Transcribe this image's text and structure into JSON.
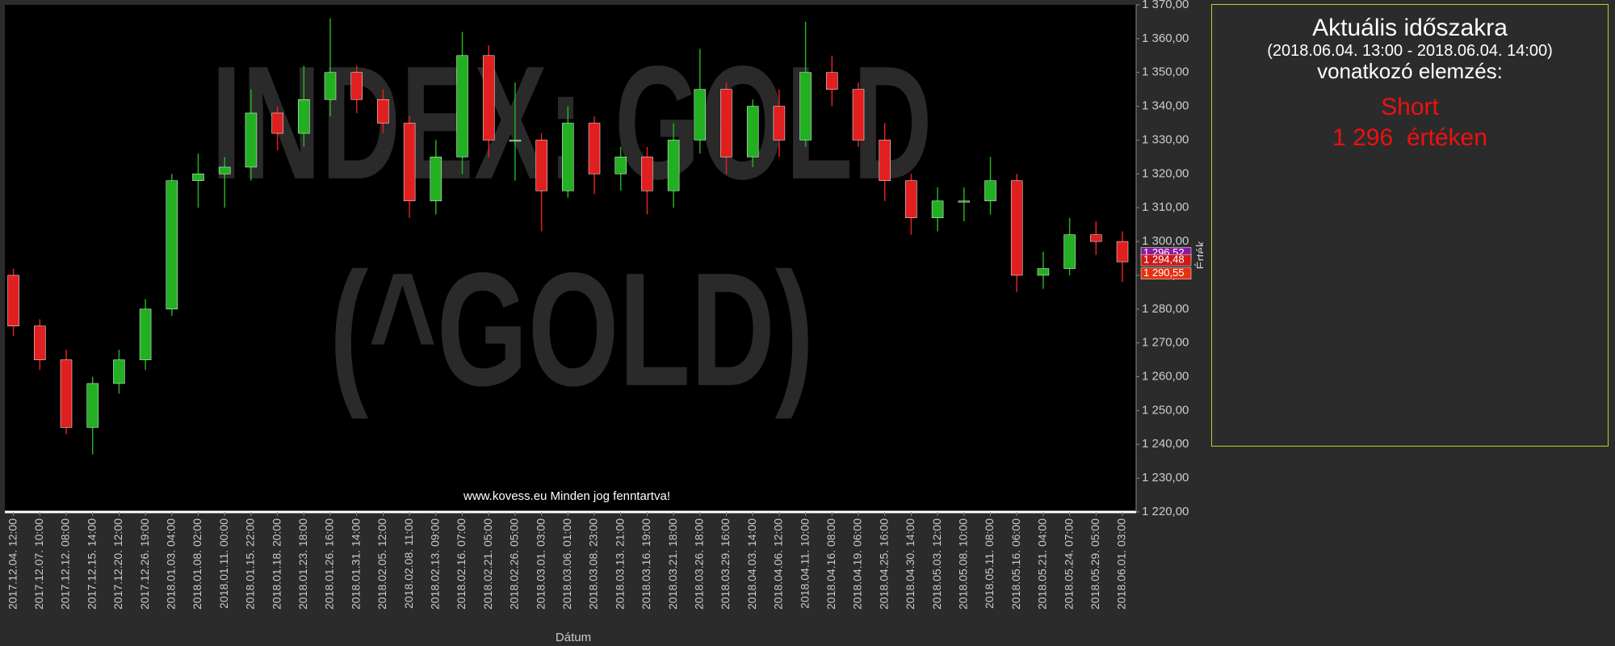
{
  "chart_data": {
    "type": "candlestick",
    "watermark": [
      "INDEX: GOLD",
      "(^GOLD)"
    ],
    "footer": "www.kovess.eu Minden jog fenntartva!",
    "x_label": "Dátum",
    "y_label": "Érték",
    "categories": [
      "2017.12.04. 12:00",
      "2017.12.07. 10:00",
      "2017.12.12. 08:00",
      "2017.12.15. 14:00",
      "2017.12.20. 12:00",
      "2017.12.26. 19:00",
      "2018.01.03. 04:00",
      "2018.01.08. 02:00",
      "2018.01.11. 00:00",
      "2018.01.15. 22:00",
      "2018.01.18. 20:00",
      "2018.01.23. 18:00",
      "2018.01.26. 16:00",
      "2018.01.31. 14:00",
      "2018.02.05. 12:00",
      "2018.02.08. 11:00",
      "2018.02.13. 09:00",
      "2018.02.16. 07:00",
      "2018.02.21. 05:00",
      "2018.02.26. 05:00",
      "2018.03.01. 03:00",
      "2018.03.06. 01:00",
      "2018.03.08. 23:00",
      "2018.03.13. 21:00",
      "2018.03.16. 19:00",
      "2018.03.21. 18:00",
      "2018.03.26. 18:00",
      "2018.03.29. 16:00",
      "2018.04.03. 14:00",
      "2018.04.06. 12:00",
      "2018.04.11. 10:00",
      "2018.04.16. 08:00",
      "2018.04.19. 06:00",
      "2018.04.25. 16:00",
      "2018.04.30. 14:00",
      "2018.05.03. 12:00",
      "2018.05.08. 10:00",
      "2018.05.11. 08:00",
      "2018.05.16. 06:00",
      "2018.05.21. 04:00",
      "2018.05.24. 07:00",
      "2018.05.29. 05:00",
      "2018.06.01. 03:00"
    ],
    "open": [
      1290,
      1275,
      1265,
      1245,
      1258,
      1265,
      1280,
      1318,
      1320,
      1322,
      1338,
      1332,
      1342,
      1350,
      1342,
      1335,
      1312,
      1325,
      1355,
      1330,
      1330,
      1315,
      1335,
      1320,
      1325,
      1315,
      1330,
      1345,
      1325,
      1340,
      1330,
      1350,
      1345,
      1330,
      1318,
      1307,
      1312,
      1312,
      1318,
      1290,
      1292,
      1302,
      1300
    ],
    "high": [
      1292,
      1277,
      1268,
      1260,
      1268,
      1283,
      1320,
      1326,
      1325,
      1345,
      1340,
      1352,
      1366,
      1352,
      1345,
      1337,
      1330,
      1362,
      1358,
      1347,
      1332,
      1340,
      1337,
      1328,
      1328,
      1335,
      1357,
      1347,
      1342,
      1345,
      1365,
      1355,
      1347,
      1335,
      1320,
      1316,
      1316,
      1325,
      1320,
      1297,
      1307,
      1306,
      1303
    ],
    "low": [
      1272,
      1262,
      1243,
      1237,
      1255,
      1262,
      1278,
      1310,
      1310,
      1318,
      1327,
      1328,
      1337,
      1338,
      1332,
      1307,
      1308,
      1320,
      1325,
      1318,
      1303,
      1313,
      1314,
      1315,
      1308,
      1310,
      1326,
      1320,
      1322,
      1325,
      1328,
      1340,
      1328,
      1312,
      1302,
      1303,
      1306,
      1308,
      1285,
      1286,
      1290,
      1296,
      1288
    ],
    "close": [
      1275,
      1265,
      1245,
      1258,
      1265,
      1280,
      1318,
      1320,
      1322,
      1338,
      1332,
      1342,
      1350,
      1342,
      1335,
      1312,
      1325,
      1355,
      1330,
      1330,
      1315,
      1335,
      1320,
      1325,
      1315,
      1330,
      1345,
      1325,
      1340,
      1330,
      1350,
      1345,
      1330,
      1318,
      1307,
      1312,
      1312,
      1318,
      1290,
      1292,
      1302,
      1300,
      1294
    ],
    "up_color": "#22b022",
    "down_color": "#e02020",
    "ylim": [
      1220,
      1370
    ],
    "yticks": [
      {
        "value": 1220,
        "label": "1 220,00"
      },
      {
        "value": 1230,
        "label": "1 230,00"
      },
      {
        "value": 1240,
        "label": "1 240,00"
      },
      {
        "value": 1250,
        "label": "1 250,00"
      },
      {
        "value": 1260,
        "label": "1 260,00"
      },
      {
        "value": 1270,
        "label": "1 270,00"
      },
      {
        "value": 1280,
        "label": "1 280,00"
      },
      {
        "value": 1290,
        "label": "1 290,00"
      },
      {
        "value": 1300,
        "label": "1 300,00"
      },
      {
        "value": 1310,
        "label": "1 310,00"
      },
      {
        "value": 1320,
        "label": "1 320,00"
      },
      {
        "value": 1330,
        "label": "1 330,00"
      },
      {
        "value": 1340,
        "label": "1 340,00"
      },
      {
        "value": 1350,
        "label": "1 350,00"
      },
      {
        "value": 1360,
        "label": "1 360,00"
      },
      {
        "value": 1370,
        "label": "1 370,00"
      }
    ],
    "price_markers": [
      {
        "value": 1296.52,
        "label": "1 296,52",
        "color": "#8a1aa0"
      },
      {
        "value": 1294.48,
        "label": "1 294,48",
        "color": "#d01818"
      },
      {
        "value": 1290.55,
        "label": "1 290,55",
        "color": "#e83010"
      }
    ],
    "panel": {
      "title": "Aktuális időszakra",
      "period": "(2018.06.04. 13:00 - 2018.06.04. 14:00)",
      "subtitle": "vonatkozó elemzés:",
      "signal": "Short",
      "level": "1 296  értéken"
    }
  }
}
